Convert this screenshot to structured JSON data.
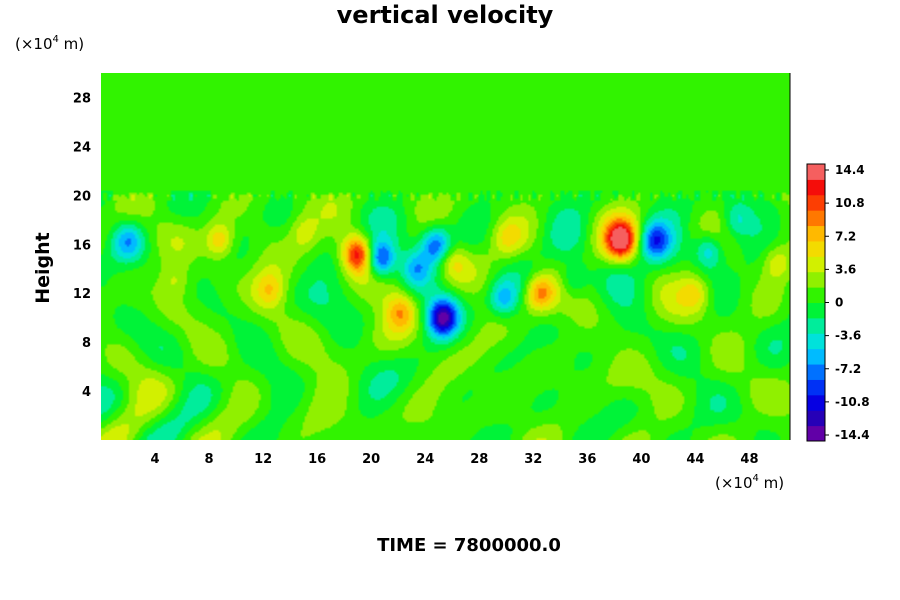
{
  "chart_data": {
    "type": "heatmap",
    "title": "vertical velocity",
    "ylabel": "Height",
    "x_unit": "(×10",
    "x_unit_exp": "4",
    "x_unit_tail": " m)",
    "y_unit": "(×10",
    "y_unit_exp": "4",
    "y_unit_tail": " m)",
    "xlim": [
      0,
      51
    ],
    "ylim": [
      0,
      30
    ],
    "x_ticks": [
      4,
      8,
      12,
      16,
      20,
      24,
      28,
      32,
      36,
      40,
      44,
      48
    ],
    "y_ticks": [
      4,
      8,
      12,
      16,
      20,
      24,
      28
    ],
    "color_range": [
      -16.2,
      16.2
    ],
    "colorbar_ticks": [
      "14.4",
      "10.8",
      "7.2",
      "3.6",
      "0",
      "-3.6",
      "-7.2",
      "-10.8",
      "-14.4"
    ],
    "colorbar_levels": 18,
    "active_layer_top": 20,
    "features": [
      {
        "x": 19.0,
        "y": 15.2,
        "value": 12.5
      },
      {
        "x": 38.5,
        "y": 16.3,
        "value": 13.5
      },
      {
        "x": 8.8,
        "y": 16.3,
        "value": 7.5
      },
      {
        "x": 32.5,
        "y": 12.0,
        "value": 9.0
      },
      {
        "x": 22.2,
        "y": 10.5,
        "value": 6.5
      },
      {
        "x": 12.5,
        "y": 12.3,
        "value": 5.0
      },
      {
        "x": 26.0,
        "y": 14.5,
        "value": 4.5
      },
      {
        "x": 50.0,
        "y": 14.5,
        "value": 4.5
      },
      {
        "x": 44.0,
        "y": 12.0,
        "value": 4.5
      },
      {
        "x": 15.0,
        "y": 17.0,
        "value": 4.0
      },
      {
        "x": 5.5,
        "y": 13.0,
        "value": 3.5
      },
      {
        "x": 30.0,
        "y": 16.5,
        "value": 3.5
      },
      {
        "x": 20.7,
        "y": 14.8,
        "value": -12.5
      },
      {
        "x": 25.3,
        "y": 10.0,
        "value": -14.0
      },
      {
        "x": 24.8,
        "y": 16.0,
        "value": -10.0
      },
      {
        "x": 41.0,
        "y": 16.3,
        "value": -9.0
      },
      {
        "x": 45.0,
        "y": 15.5,
        "value": -7.0
      },
      {
        "x": 2.0,
        "y": 16.3,
        "value": -6.0
      },
      {
        "x": 29.8,
        "y": 11.5,
        "value": -7.0
      },
      {
        "x": 35.0,
        "y": 13.0,
        "value": -5.0
      },
      {
        "x": 47.0,
        "y": 18.0,
        "value": -5.0
      },
      {
        "x": 23.3,
        "y": 14.0,
        "value": -6.0
      }
    ],
    "time_label": "TIME = 7800000.0"
  }
}
